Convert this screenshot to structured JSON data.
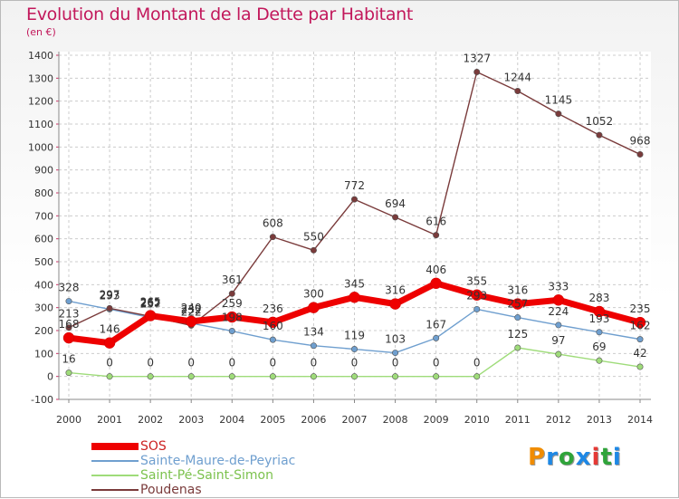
{
  "title": "Evolution du Montant de la Dette par Habitant",
  "subtitle": "(en €)",
  "brand": {
    "text": "Proxiti",
    "colors": [
      "#f08c00",
      "#1e88e5",
      "#2fa43a",
      "#1e88e5",
      "#e53935",
      "#2fa43a",
      "#1e88e5"
    ]
  },
  "chart_data": {
    "type": "line",
    "title": "Evolution du Montant de la Dette par Habitant",
    "subtitle": "(en €)",
    "x": [
      "2000",
      "2001",
      "2002",
      "2003",
      "2004",
      "2005",
      "2006",
      "2007",
      "2008",
      "2009",
      "2010",
      "2011",
      "2012",
      "2013",
      "2014"
    ],
    "ylim": [
      -100,
      1400
    ],
    "yticks": [
      "-100",
      "0",
      "100",
      "200",
      "300",
      "400",
      "500",
      "600",
      "700",
      "800",
      "900",
      "1000",
      "1100",
      "1200",
      "1300",
      "1400"
    ],
    "grid": true,
    "legend_position": "bottom-left",
    "series": [
      {
        "name": "SOS",
        "color": "#ee0000",
        "emphasis": "thick",
        "values": [
          168,
          146,
          265,
          240,
          259,
          236,
          300,
          345,
          316,
          406,
          355,
          316,
          333,
          283,
          235
        ],
        "labels": [
          "168",
          "146",
          "265",
          "240",
          "259",
          "236",
          "300",
          "345",
          "316",
          "406",
          "355",
          "316",
          "333",
          "283",
          "235"
        ]
      },
      {
        "name": "Sainte-Maure-de-Peyriac",
        "color": "#6f9fcf",
        "emphasis": "thin",
        "values": [
          328,
          293,
          257,
          232,
          198,
          160,
          134,
          119,
          103,
          167,
          293,
          257,
          224,
          193,
          162
        ],
        "labels": [
          "328",
          "293",
          "257",
          "232",
          "198",
          "160",
          "134",
          "119",
          "103",
          "167",
          "293",
          "257",
          "224",
          "193",
          "162"
        ]
      },
      {
        "name": "Saint-Pé-Saint-Simon",
        "color": "#9fdc7a",
        "emphasis": "thin",
        "values": [
          16,
          0,
          0,
          0,
          0,
          0,
          0,
          0,
          0,
          0,
          0,
          125,
          97,
          69,
          42
        ],
        "labels": [
          "16",
          "0",
          "0",
          "0",
          "0",
          "0",
          "0",
          "0",
          "0",
          "0",
          "0",
          "125",
          "97",
          "69",
          "42"
        ]
      },
      {
        "name": "Poudenas",
        "color": "#7a3b3b",
        "emphasis": "thin",
        "values": [
          213,
          297,
          262,
          222,
          361,
          608,
          550,
          772,
          694,
          616,
          1327,
          1244,
          1145,
          1052,
          968
        ],
        "labels": [
          "213",
          "297",
          "262",
          "222",
          "361",
          "608",
          "550",
          "772",
          "694",
          "616",
          "1327",
          "1244",
          "1145",
          "1052",
          "968"
        ]
      }
    ]
  }
}
